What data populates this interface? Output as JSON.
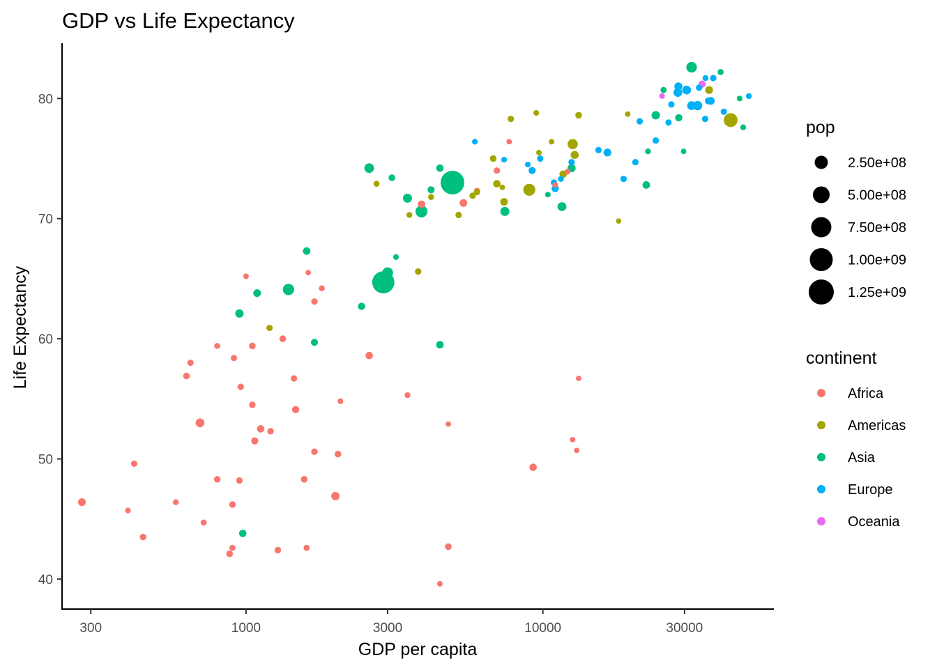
{
  "chart_data": {
    "type": "scatter",
    "title": "GDP vs Life Expectancy",
    "xlabel": "GDP per capita",
    "ylabel": "Life Expectancy",
    "x_scale": "log10",
    "xlim": [
      240,
      60000
    ],
    "ylim": [
      37.5,
      84.6
    ],
    "x_ticks": [
      300,
      1000,
      3000,
      10000,
      30000
    ],
    "x_tick_labels": [
      "300",
      "1000",
      "3000",
      "10000",
      "30000"
    ],
    "y_ticks": [
      40,
      50,
      60,
      70,
      80
    ],
    "y_tick_labels": [
      "40",
      "50",
      "60",
      "70",
      "80"
    ],
    "grid": false,
    "legend_position": "right",
    "colors": {
      "Africa": "#F8766D",
      "Americas": "#A3A500",
      "Asia": "#00BF7D",
      "Europe": "#00B0F6",
      "Oceania": "#E76BF3"
    },
    "size_legend": {
      "title": "pop",
      "values": [
        250000000,
        500000000,
        750000000,
        1000000000,
        1250000000
      ],
      "labels": [
        "2.50e+08",
        "5.00e+08",
        "7.50e+08",
        "1.00e+09",
        "1.25e+09"
      ]
    },
    "color_legend": {
      "title": "continent",
      "entries": [
        "Africa",
        "Americas",
        "Asia",
        "Europe",
        "Oceania"
      ]
    },
    "series": [
      {
        "name": "Africa",
        "points": [
          [
            280,
            46.4,
            33000000
          ],
          [
            400,
            45.7,
            4000000
          ],
          [
            420,
            49.6,
            10000000
          ],
          [
            450,
            43.5,
            12000000
          ],
          [
            580,
            46.4,
            5000000
          ],
          [
            630,
            56.9,
            15000000
          ],
          [
            650,
            58.0,
            8000000
          ],
          [
            700,
            53.0,
            60000000
          ],
          [
            720,
            44.7,
            7000000
          ],
          [
            800,
            48.3,
            12000000
          ],
          [
            800,
            59.4,
            6000000
          ],
          [
            880,
            42.1,
            15000000
          ],
          [
            900,
            42.6,
            7000000
          ],
          [
            900,
            46.2,
            12000000
          ],
          [
            910,
            58.4,
            8000000
          ],
          [
            950,
            48.2,
            10000000
          ],
          [
            960,
            56.0,
            11000000
          ],
          [
            1000,
            65.2,
            3000000
          ],
          [
            1050,
            54.5,
            12000000
          ],
          [
            1050,
            59.4,
            15000000
          ],
          [
            1070,
            51.5,
            20000000
          ],
          [
            1120,
            52.5,
            25000000
          ],
          [
            1210,
            52.3,
            13000000
          ],
          [
            1280,
            42.4,
            12000000
          ],
          [
            1330,
            60.0,
            15000000
          ],
          [
            1450,
            56.7,
            10000000
          ],
          [
            1470,
            54.1,
            22000000
          ],
          [
            1570,
            48.3,
            15000000
          ],
          [
            1600,
            42.6,
            7000000
          ],
          [
            1620,
            65.5,
            1500000
          ],
          [
            1700,
            63.1,
            10000000
          ],
          [
            1700,
            50.6,
            12000000
          ],
          [
            1800,
            64.2,
            5000000
          ],
          [
            2000,
            46.9,
            50000000
          ],
          [
            2040,
            50.4,
            15000000
          ],
          [
            2080,
            54.8,
            4000000
          ],
          [
            2600,
            58.6,
            25000000
          ],
          [
            3500,
            55.3,
            5000000
          ],
          [
            3900,
            71.2,
            25000000
          ],
          [
            4500,
            39.6,
            3000000
          ],
          [
            4800,
            52.9,
            2000000
          ],
          [
            4800,
            42.7,
            15000000
          ],
          [
            5400,
            71.3,
            30000000
          ],
          [
            6000,
            72.3,
            10000000
          ],
          [
            7000,
            74.0,
            10000000
          ],
          [
            7700,
            76.4,
            2000000
          ],
          [
            9270,
            49.3,
            25000000
          ],
          [
            11000,
            72.8,
            4000000
          ],
          [
            12100,
            73.9,
            5000000
          ],
          [
            12600,
            51.6,
            1500000
          ],
          [
            13000,
            50.7,
            2000000
          ],
          [
            13200,
            56.7,
            2000000
          ]
        ]
      },
      {
        "name": "Americas",
        "points": [
          [
            1200,
            60.9,
            8000000
          ],
          [
            2750,
            72.9,
            6000000
          ],
          [
            3550,
            70.3,
            5000000
          ],
          [
            3800,
            65.6,
            10000000
          ],
          [
            4200,
            71.8,
            6000000
          ],
          [
            5200,
            70.3,
            10000000
          ],
          [
            5800,
            71.9,
            10000000
          ],
          [
            6000,
            72.2,
            8000000
          ],
          [
            6800,
            75.0,
            12000000
          ],
          [
            7000,
            72.9,
            25000000
          ],
          [
            7300,
            72.6,
            2000000
          ],
          [
            7400,
            71.4,
            30000000
          ],
          [
            7800,
            78.3,
            10000000
          ],
          [
            9000,
            72.4,
            190000000
          ],
          [
            9500,
            78.8,
            4000000
          ],
          [
            9700,
            75.5,
            3000000
          ],
          [
            10700,
            76.4,
            3000000
          ],
          [
            11700,
            73.7,
            27000000
          ],
          [
            12600,
            76.2,
            109000000
          ],
          [
            12800,
            75.3,
            40000000
          ],
          [
            13200,
            78.6,
            15000000
          ],
          [
            18000,
            69.8,
            1000000
          ],
          [
            19300,
            78.7,
            3000000
          ],
          [
            36300,
            80.7,
            33000000
          ],
          [
            42900,
            78.2,
            301000000
          ]
        ]
      },
      {
        "name": "Asia",
        "points": [
          [
            975,
            43.8,
            25000000
          ],
          [
            950,
            62.1,
            47000000
          ],
          [
            1090,
            63.8,
            30000000
          ],
          [
            1390,
            64.1,
            160000000
          ],
          [
            1600,
            67.3,
            28000000
          ],
          [
            1700,
            59.7,
            20000000
          ],
          [
            2450,
            62.7,
            24000000
          ],
          [
            2600,
            74.2,
            85000000
          ],
          [
            2900,
            64.7,
            1110000000
          ],
          [
            3000,
            65.5,
            131000000
          ],
          [
            3100,
            73.4,
            15000000
          ],
          [
            3200,
            66.8,
            4000000
          ],
          [
            3500,
            71.7,
            70000000
          ],
          [
            3900,
            70.6,
            190000000
          ],
          [
            4200,
            72.4,
            20000000
          ],
          [
            4500,
            74.2,
            25000000
          ],
          [
            4500,
            59.5,
            28000000
          ],
          [
            4800,
            72.6,
            10000000
          ],
          [
            4960,
            73.0,
            1320000000
          ],
          [
            7450,
            70.6,
            70000000
          ],
          [
            10400,
            72.0,
            3000000
          ],
          [
            11600,
            71.0,
            65000000
          ],
          [
            12500,
            74.2,
            40000000
          ],
          [
            22300,
            72.8,
            28000000
          ],
          [
            22600,
            75.6,
            5000000
          ],
          [
            24000,
            78.6,
            49000000
          ],
          [
            25500,
            80.7,
            7000000
          ],
          [
            28700,
            78.4,
            23000000
          ],
          [
            29800,
            75.6,
            3000000
          ],
          [
            31700,
            82.6,
            127000000
          ],
          [
            39700,
            82.2,
            7000000
          ],
          [
            46000,
            80.0,
            4000000
          ],
          [
            47300,
            77.6,
            5000000
          ]
        ]
      },
      {
        "name": "Europe",
        "points": [
          [
            5900,
            76.4,
            4000000
          ],
          [
            7400,
            74.9,
            4000000
          ],
          [
            8900,
            74.5,
            4000000
          ],
          [
            9200,
            74.0,
            20000000
          ],
          [
            9800,
            75.0,
            10000000
          ],
          [
            10900,
            73.0,
            10000000
          ],
          [
            11000,
            72.5,
            22000000
          ],
          [
            11500,
            73.3,
            5000000
          ],
          [
            12500,
            74.7,
            10000000
          ],
          [
            15400,
            75.7,
            10000000
          ],
          [
            16500,
            75.5,
            35000000
          ],
          [
            18700,
            73.3,
            10000000
          ],
          [
            20500,
            74.7,
            10000000
          ],
          [
            21200,
            78.1,
            10000000
          ],
          [
            24000,
            76.5,
            10000000
          ],
          [
            26500,
            78.0,
            9000000
          ],
          [
            27100,
            79.5,
            10000000
          ],
          [
            28500,
            80.5,
            58000000
          ],
          [
            28600,
            81.0,
            40000000
          ],
          [
            30500,
            80.7,
            60000000
          ],
          [
            31700,
            79.4,
            60000000
          ],
          [
            33200,
            79.4,
            80000000
          ],
          [
            33600,
            80.9,
            10000000
          ],
          [
            35200,
            78.3,
            10000000
          ],
          [
            35300,
            81.7,
            5000000
          ],
          [
            36100,
            79.8,
            20000000
          ],
          [
            36800,
            79.8,
            30000000
          ],
          [
            37500,
            81.7,
            10000000
          ],
          [
            40700,
            78.9,
            10000000
          ],
          [
            49400,
            80.2,
            5000000
          ]
        ]
      },
      {
        "name": "Oceania",
        "points": [
          [
            25200,
            80.2,
            4000000
          ],
          [
            34400,
            81.2,
            20000000
          ]
        ]
      }
    ]
  }
}
